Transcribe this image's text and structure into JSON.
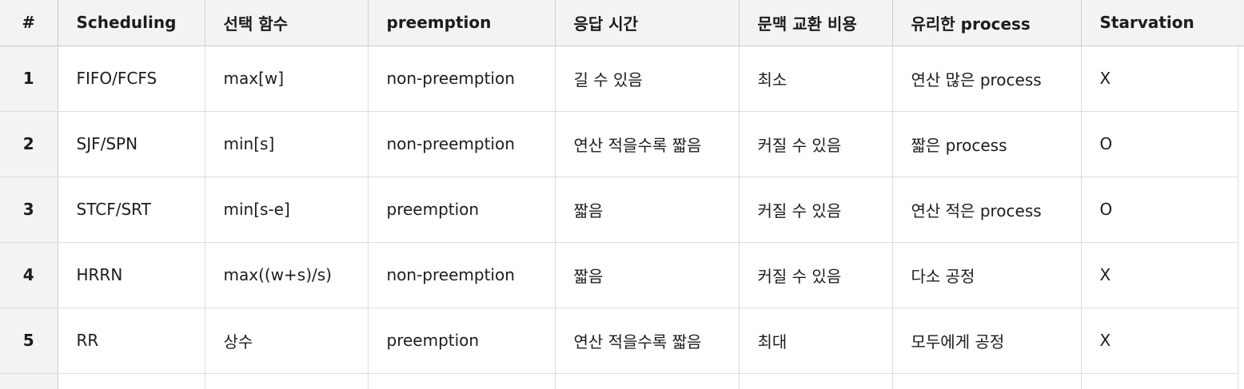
{
  "table": {
    "headers": [
      "#",
      "Scheduling",
      "선택 함수",
      "preemption",
      "응답 시간",
      "문맥 교환 비용",
      "유리한 process",
      "Starvation"
    ],
    "rows": [
      [
        "1",
        "FIFO/FCFS",
        "max[w]",
        "non-preemption",
        "길 수 있음",
        "최소",
        "연산 많은 process",
        "X"
      ],
      [
        "2",
        "SJF/SPN",
        "min[s]",
        "non-preemption",
        "연산 적을수록 짧음",
        "커질 수 있음",
        "짧은 process",
        "O"
      ],
      [
        "3",
        "STCF/SRT",
        "min[s-e]",
        "preemption",
        "짧음",
        "커질 수 있음",
        "연산 적은 process",
        "O"
      ],
      [
        "4",
        "HRRN",
        "max((w+s)/s)",
        "non-preemption",
        "짧음",
        "커질 수 있음",
        "다소 공정",
        "X"
      ],
      [
        "5",
        "RR",
        "상수",
        "preemption",
        "연산 적을수록 짧음",
        "최대",
        "모두에게 공정",
        "X"
      ]
    ]
  }
}
